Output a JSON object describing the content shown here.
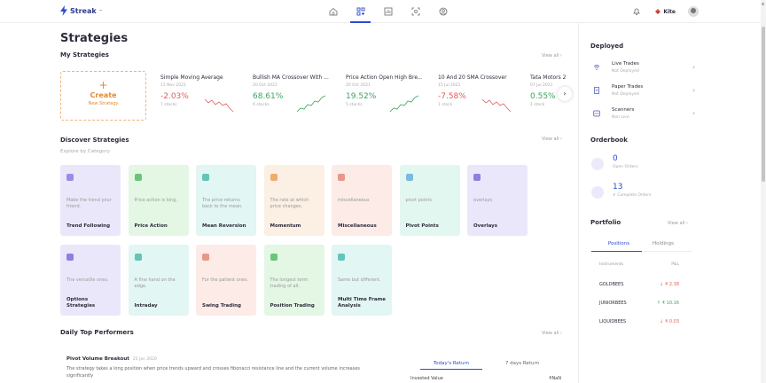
{
  "app": {
    "name": "Streak",
    "tm": "™"
  },
  "topnav": {
    "icons": [
      "home-icon",
      "strategies-icon",
      "chart-icon",
      "scanner-icon",
      "user-circle-icon"
    ],
    "active": 1,
    "broker": "Kite"
  },
  "page": {
    "title": "Strategies"
  },
  "my_strategies": {
    "title": "My Strategies",
    "view_all": "View all",
    "create": {
      "label": "Create",
      "sub": "New Strategy"
    },
    "items": [
      {
        "name": "Simple Moving Average",
        "date": "15 Nov 2021",
        "pct": "-2.03%",
        "stocks": "7 stocks",
        "trend": "neg"
      },
      {
        "name": "Bullish MA Crossover With ...",
        "date": "20 Oct 2021",
        "pct": "68.61%",
        "stocks": "6 stocks",
        "trend": "pos"
      },
      {
        "name": "Price Action Open High Bre...",
        "date": "20 Oct 2021",
        "pct": "19.52%",
        "stocks": "5 stocks",
        "trend": "pos"
      },
      {
        "name": "10 And 20 SMA Crossover",
        "date": "15 Jul 2021",
        "pct": "-7.58%",
        "stocks": "1 stock",
        "trend": "neg"
      },
      {
        "name": "Tata Motors 2",
        "date": "07 Jul 2021",
        "pct": "0.55%",
        "stocks": "1 stock",
        "trend": "pos"
      }
    ]
  },
  "discover": {
    "title": "Discover Strategies",
    "subtitle": "Explore by Category",
    "view_all": "View all",
    "categories": [
      {
        "name": "Trend Following",
        "desc": "Make the trend your friend.",
        "color": "#ebe7fb",
        "icon": "#7b6fe0"
      },
      {
        "name": "Price Action",
        "desc": "Price action is king.",
        "color": "#e3f7e4",
        "icon": "#43b356"
      },
      {
        "name": "Mean Reversion",
        "desc": "The price returns back to the mean.",
        "color": "#e2f6f4",
        "icon": "#3bb3a6"
      },
      {
        "name": "Momentum",
        "desc": "The rate at which price changes.",
        "color": "#fcefe3",
        "icon": "#e8964a"
      },
      {
        "name": "Miscellaneous",
        "desc": "miscellaneous",
        "color": "#fcebe7",
        "icon": "#e07c68"
      },
      {
        "name": "Pivot Points",
        "desc": "pivot points",
        "color": "#e3f7f1",
        "icon": "#5aa3d8"
      },
      {
        "name": "Overlays",
        "desc": "overlays",
        "color": "#ebe7fb",
        "icon": "#6b5fd4"
      },
      {
        "name": "Options Strategies",
        "desc": "The versatile ones.",
        "color": "#ebe7fb",
        "icon": "#6b5fd4"
      },
      {
        "name": "Intraday",
        "desc": "A fine hand on the edge.",
        "color": "#e2f6f4",
        "icon": "#3bb3a6"
      },
      {
        "name": "Swing Trading",
        "desc": "For the patient ones.",
        "color": "#fcebe7",
        "icon": "#e07c68"
      },
      {
        "name": "Position Trading",
        "desc": "The longest term trading of all.",
        "color": "#e3f7e4",
        "icon": "#43b356"
      },
      {
        "name": "Multi Time Frame Analysis",
        "desc": "Same but different.",
        "color": "#e2f6f4",
        "icon": "#3bb3a6"
      }
    ]
  },
  "top_performers": {
    "title": "Daily Top Performers",
    "view_all": "View all",
    "item": {
      "name": "Pivot Volume Breakout",
      "date": "25 Jan 2020",
      "desc": "The strategy takes a long position when price trends upward and crosses fibonacci resistance line and the current volume increases significantly"
    },
    "tabs": [
      "Today's Return",
      "7 days Return"
    ],
    "row": {
      "label": "Invested Value",
      "value": "₹NaN"
    }
  },
  "sidebar": {
    "deployed": {
      "title": "Deployed",
      "items": [
        {
          "label": "Live Trades",
          "sub": "Not Deployed",
          "icon": "wifi-icon"
        },
        {
          "label": "Paper Trades",
          "sub": "Not Deployed",
          "icon": "document-icon"
        },
        {
          "label": "Scanners",
          "sub": "Non Live",
          "icon": "scanner-icon"
        }
      ]
    },
    "orderbook": {
      "title": "Orderbook",
      "items": [
        {
          "count": "0",
          "label": "Open Orders",
          "color": "#ece9fb"
        },
        {
          "count": "13",
          "label": "Complete Orders",
          "color": "#ece9fb"
        }
      ]
    },
    "portfolio": {
      "title": "Portfolio",
      "view_all": "View all",
      "tabs": [
        "Positions",
        "Holdings"
      ],
      "headers": [
        "Instruments",
        "P&L"
      ],
      "rows": [
        {
          "name": "GOLDBEES",
          "pl": "₹ 2.38",
          "dir": "down"
        },
        {
          "name": "JUNIORBEES",
          "pl": "₹ 10.16",
          "dir": "up"
        },
        {
          "name": "LIQUIDBEES",
          "pl": "₹ 0.03",
          "dir": "down"
        }
      ]
    }
  }
}
